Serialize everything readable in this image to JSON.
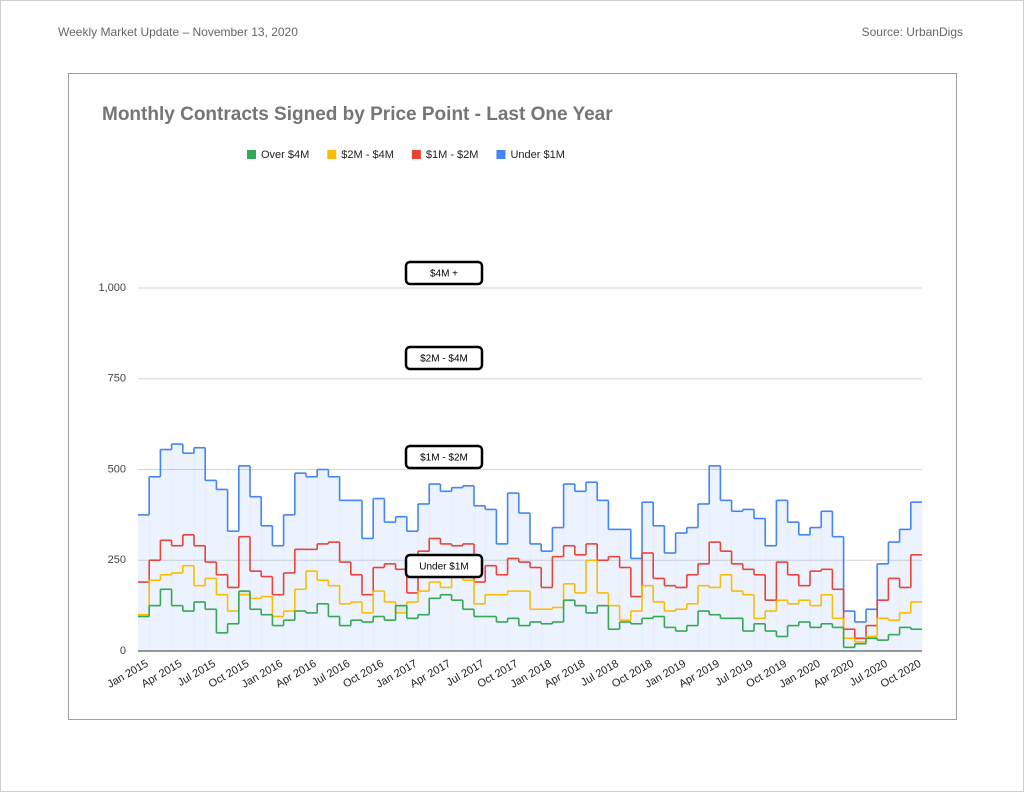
{
  "header": {
    "left": "Weekly Market Update – November 13, 2020",
    "right": "Source: UrbanDigs"
  },
  "chart_data": {
    "type": "stacked-step-area",
    "title": "Monthly Contracts Signed by Price Point - Last One Year",
    "categories": [
      "Jan 2015",
      null,
      null,
      "Apr 2015",
      null,
      null,
      "Jul 2015",
      null,
      null,
      "Oct 2015",
      null,
      null,
      "Jan 2016",
      null,
      null,
      "Apr 2016",
      null,
      null,
      "Jul 2016",
      null,
      null,
      "Oct 2016",
      null,
      null,
      "Jan 2017",
      null,
      null,
      "Apr 2017",
      null,
      null,
      "Jul 2017",
      null,
      null,
      "Oct 2017",
      null,
      null,
      "Jan 2018",
      null,
      null,
      "Apr 2018",
      null,
      null,
      "Jul 2018",
      null,
      null,
      "Oct 2018",
      null,
      null,
      "Jan 2019",
      null,
      null,
      "Apr 2019",
      null,
      null,
      "Jul 2019",
      null,
      null,
      "Oct 2019",
      null,
      null,
      "Jan 2020",
      null,
      null,
      "Apr 2020",
      null,
      null,
      "Jul 2020",
      null,
      null,
      "Oct 2020"
    ],
    "series": [
      {
        "name": "Under $1M",
        "color": "#4285f4",
        "values": [
          375,
          480,
          555,
          570,
          545,
          560,
          470,
          445,
          330,
          510,
          425,
          345,
          290,
          375,
          490,
          480,
          500,
          480,
          415,
          415,
          310,
          420,
          355,
          370,
          330,
          405,
          460,
          440,
          450,
          455,
          400,
          390,
          295,
          435,
          380,
          295,
          275,
          340,
          460,
          440,
          465,
          415,
          335,
          335,
          255,
          410,
          345,
          270,
          325,
          340,
          405,
          510,
          415,
          385,
          390,
          365,
          290,
          415,
          355,
          320,
          340,
          385,
          315,
          110,
          80,
          115,
          240,
          300,
          335,
          410
        ]
      },
      {
        "name": "$1M - $2M",
        "color": "#ea4335",
        "values": [
          190,
          250,
          305,
          290,
          320,
          290,
          245,
          210,
          175,
          315,
          220,
          205,
          155,
          215,
          280,
          280,
          295,
          300,
          245,
          210,
          155,
          230,
          240,
          225,
          160,
          275,
          310,
          295,
          290,
          295,
          190,
          235,
          210,
          255,
          245,
          230,
          175,
          260,
          290,
          265,
          295,
          250,
          260,
          230,
          150,
          270,
          200,
          180,
          175,
          210,
          240,
          300,
          275,
          240,
          225,
          210,
          140,
          245,
          210,
          180,
          220,
          225,
          170,
          60,
          35,
          70,
          140,
          200,
          175,
          265
        ]
      },
      {
        "name": "$2M - $4M",
        "color": "#fbbc04",
        "values": [
          100,
          195,
          210,
          215,
          235,
          180,
          200,
          155,
          110,
          155,
          145,
          150,
          95,
          110,
          170,
          220,
          195,
          180,
          130,
          135,
          105,
          165,
          135,
          105,
          135,
          165,
          190,
          175,
          225,
          195,
          130,
          155,
          155,
          165,
          165,
          115,
          115,
          120,
          185,
          160,
          250,
          160,
          125,
          85,
          110,
          180,
          135,
          110,
          115,
          130,
          180,
          175,
          210,
          165,
          155,
          90,
          110,
          140,
          130,
          140,
          125,
          155,
          90,
          35,
          25,
          40,
          90,
          85,
          105,
          135
        ]
      },
      {
        "name": "Over $4M",
        "color": "#34a853",
        "values": [
          95,
          125,
          170,
          125,
          110,
          135,
          115,
          50,
          75,
          165,
          115,
          100,
          70,
          85,
          110,
          105,
          130,
          95,
          70,
          85,
          80,
          95,
          85,
          125,
          90,
          100,
          145,
          155,
          140,
          115,
          95,
          95,
          80,
          90,
          70,
          80,
          75,
          80,
          140,
          125,
          105,
          125,
          60,
          80,
          75,
          90,
          95,
          65,
          55,
          70,
          110,
          100,
          90,
          90,
          55,
          75,
          55,
          40,
          70,
          80,
          65,
          75,
          65,
          10,
          20,
          35,
          30,
          45,
          65,
          60
        ]
      }
    ],
    "legend_order": [
      "Over $4M",
      "$2M - $4M",
      "$1M - $2M",
      "Under $1M"
    ],
    "legend": "top",
    "annotations": [
      "$4M +",
      "$2M - $4M",
      "$1M - $2M",
      "Under $1M"
    ],
    "ylim": [
      0,
      1300
    ],
    "yticks": [
      0,
      250,
      500,
      750,
      {
        "value": 1000,
        "label": "1,000"
      }
    ],
    "grid": true
  }
}
